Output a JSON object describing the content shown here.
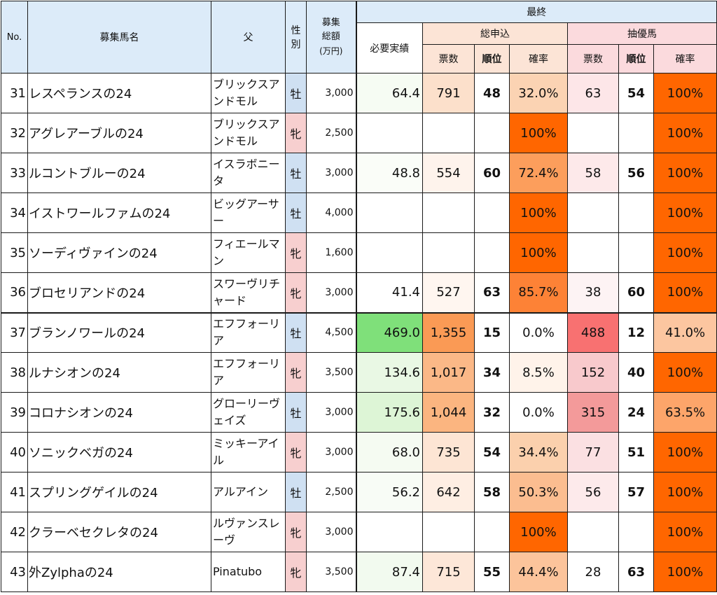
{
  "header": {
    "no": "No.",
    "name": "募集馬名",
    "sire": "父",
    "sex_line1": "性",
    "sex_line2": "別",
    "total_line1": "募集",
    "total_line2": "総額",
    "total_line3": "(万円)",
    "final": "最終",
    "required": "必要実績",
    "total_apply": "総申込",
    "lottery": "抽優馬",
    "votes": "票数",
    "rank": "順位",
    "rate": "確率"
  },
  "rows": [
    {
      "no": "31",
      "name": "レスペランスの24",
      "sire": "ブリックスアンドモル",
      "sex": "牡",
      "total": "3,000",
      "required": "64.4",
      "votes": "791",
      "rank": "48",
      "rate": "32.0%",
      "lvotes": "63",
      "lrank": "54",
      "lrate": "100%",
      "req_bg": "#f6fcf3",
      "votes_bg": "#fce0cb",
      "rate_bg": "#fbd3b3",
      "lvotes_bg": "#fde6e8",
      "lrate_bg": "#ff6600"
    },
    {
      "no": "32",
      "name": "アグレアーブルの24",
      "sire": "ブリックスアンドモル",
      "sex": "牝",
      "total": "2,500",
      "required": "",
      "votes": "",
      "rank": "",
      "rate": "100%",
      "lvotes": "",
      "lrank": "",
      "lrate": "100%",
      "req_bg": "#ffffff",
      "votes_bg": "#ffffff",
      "rate_bg": "#ff6600",
      "lvotes_bg": "#ffffff",
      "lrate_bg": "#ff6600"
    },
    {
      "no": "33",
      "name": "ルコントブルーの24",
      "sire": "イスラボニータ",
      "sex": "牡",
      "total": "3,000",
      "required": "48.8",
      "votes": "554",
      "rank": "60",
      "rate": "72.4%",
      "lvotes": "58",
      "lrank": "56",
      "lrate": "100%",
      "req_bg": "#fafdf8",
      "votes_bg": "#fef3ec",
      "rate_bg": "#fc9e5c",
      "lvotes_bg": "#fde9ea",
      "lrate_bg": "#ff6600"
    },
    {
      "no": "34",
      "name": "イストワールファムの24",
      "sire": "ビッグアーサー",
      "sex": "牡",
      "total": "4,000",
      "required": "",
      "votes": "",
      "rank": "",
      "rate": "100%",
      "lvotes": "",
      "lrank": "",
      "lrate": "100%",
      "req_bg": "#ffffff",
      "votes_bg": "#ffffff",
      "rate_bg": "#ff6600",
      "lvotes_bg": "#ffffff",
      "lrate_bg": "#ff6600"
    },
    {
      "no": "35",
      "name": "ソーディヴァインの24",
      "sire": "フィエールマン",
      "sex": "牝",
      "total": "1,600",
      "required": "",
      "votes": "",
      "rank": "",
      "rate": "100%",
      "lvotes": "",
      "lrank": "",
      "lrate": "100%",
      "req_bg": "#ffffff",
      "votes_bg": "#ffffff",
      "rate_bg": "#ff6600",
      "lvotes_bg": "#ffffff",
      "lrate_bg": "#ff6600"
    },
    {
      "no": "36",
      "name": "ブロセリアンドの24",
      "sire": "スワーヴリチャード",
      "sex": "牝",
      "total": "3,000",
      "required": "41.4",
      "votes": "527",
      "rank": "63",
      "rate": "85.7%",
      "lvotes": "38",
      "lrank": "60",
      "lrate": "100%",
      "req_bg": "#ffffff",
      "votes_bg": "#fff6f0",
      "rate_bg": "#fd8236",
      "lvotes_bg": "#fdf3f4",
      "lrate_bg": "#ff6600"
    },
    {
      "no": "37",
      "name": "ブランノワールの24",
      "sire": "エフフォーリア",
      "sex": "牡",
      "total": "4,500",
      "required": "469.0",
      "votes": "1,355",
      "rank": "15",
      "rate": "0.0%",
      "lvotes": "488",
      "lrank": "12",
      "lrate": "41.0%",
      "req_bg": "#7fe07a",
      "votes_bg": "#fa9a55",
      "rate_bg": "#ffffff",
      "lvotes_bg": "#f87171",
      "lrate_bg": "#fcc6a0"
    },
    {
      "no": "38",
      "name": "ルナシオンの24",
      "sire": "エフフォーリア",
      "sex": "牝",
      "total": "3,500",
      "required": "134.6",
      "votes": "1,017",
      "rank": "34",
      "rate": "8.5%",
      "lvotes": "152",
      "lrank": "40",
      "lrate": "100%",
      "req_bg": "#e9f8e4",
      "votes_bg": "#fbb887",
      "rate_bg": "#fff3ea",
      "lvotes_bg": "#f8c9cc",
      "lrate_bg": "#ff6600"
    },
    {
      "no": "39",
      "name": "コロナシオンの24",
      "sire": "グローリーヴェイズ",
      "sex": "牡",
      "total": "3,000",
      "required": "175.6",
      "votes": "1,044",
      "rank": "32",
      "rate": "0.0%",
      "lvotes": "315",
      "lrank": "24",
      "lrate": "63.5%",
      "req_bg": "#ddf5d6",
      "votes_bg": "#fbb580",
      "rate_bg": "#ffffff",
      "lvotes_bg": "#f39a9a",
      "lrate_bg": "#fda56a"
    },
    {
      "no": "40",
      "name": "ソニックベガの24",
      "sire": "ミッキーアイル",
      "sex": "牝",
      "total": "3,000",
      "required": "68.0",
      "votes": "735",
      "rank": "54",
      "rate": "34.4%",
      "lvotes": "77",
      "lrank": "51",
      "lrate": "100%",
      "req_bg": "#f5fbf2",
      "votes_bg": "#fde5d4",
      "rate_bg": "#fbd0ad",
      "lvotes_bg": "#fbe0e2",
      "lrate_bg": "#ff6600"
    },
    {
      "no": "41",
      "name": "スプリングゲイルの24",
      "sire": "アルアイン",
      "sex": "牡",
      "total": "2,500",
      "required": "56.2",
      "votes": "642",
      "rank": "58",
      "rate": "50.3%",
      "lvotes": "56",
      "lrank": "57",
      "lrate": "100%",
      "req_bg": "#f8fcf6",
      "votes_bg": "#feeee3",
      "rate_bg": "#fbbd90",
      "lvotes_bg": "#fdeaeb",
      "lrate_bg": "#ff6600"
    },
    {
      "no": "42",
      "name": "クラーベセクレタの24",
      "sire": "ルヴァンスレーヴ",
      "sex": "牝",
      "total": "3,000",
      "required": "",
      "votes": "",
      "rank": "",
      "rate": "100%",
      "lvotes": "",
      "lrank": "",
      "lrate": "100%",
      "req_bg": "#ffffff",
      "votes_bg": "#ffffff",
      "rate_bg": "#ff6600",
      "lvotes_bg": "#ffffff",
      "lrate_bg": "#ff6600"
    },
    {
      "no": "43",
      "name": "外Zylphaの24",
      "sire": "Pinatubo",
      "sex": "牝",
      "total": "3,500",
      "required": "87.4",
      "votes": "715",
      "rank": "55",
      "rate": "44.4%",
      "lvotes": "28",
      "lrank": "63",
      "lrate": "100%",
      "req_bg": "#f2faef",
      "votes_bg": "#fde7d8",
      "rate_bg": "#fcc49b",
      "lvotes_bg": "#ffffff",
      "lrate_bg": "#ff6600"
    }
  ]
}
